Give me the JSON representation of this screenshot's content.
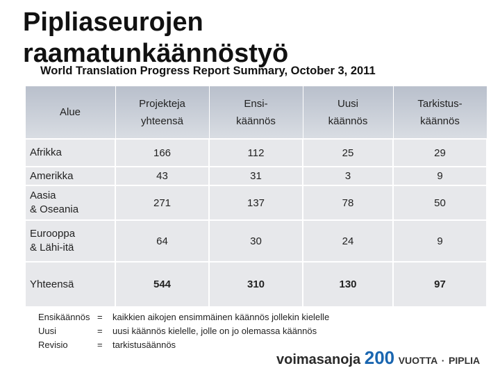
{
  "header": {
    "title_lines": [
      "Pipliaseurojen",
      "raamatunkäännöstyö"
    ],
    "subtitle": "World Translation Progress Report Summary, October 3, 2011"
  },
  "table": {
    "header": [
      [
        "Alue"
      ],
      [
        "Projekteja",
        "yhteensä"
      ],
      [
        "Ensi-",
        "käännös"
      ],
      [
        "Uusi",
        "käännös"
      ],
      [
        "Tarkistus-",
        "käännös"
      ]
    ],
    "rows": [
      [
        [
          "Afrikka"
        ],
        166,
        112,
        25,
        29
      ],
      [
        [
          "Amerikka"
        ],
        43,
        31,
        3,
        9
      ],
      [
        [
          "Aasia",
          "& Oseania"
        ],
        271,
        137,
        78,
        50
      ],
      [
        [
          "Eurooppa",
          "& Lähi-itä"
        ],
        64,
        30,
        24,
        9
      ],
      [
        [
          "Yhteensä"
        ],
        544,
        310,
        130,
        97
      ]
    ]
  },
  "legend": [
    [
      "Ensikäännös",
      "=",
      "kaikkien aikojen ensimmäinen käännös jollekin kielelle"
    ],
    [
      "Uusi",
      "=",
      "uusi käännös kielelle, jolle on jo olemassa käännös"
    ],
    [
      "Revisio",
      "=",
      "tarkistusäännös"
    ]
  ],
  "logo": {
    "word": "voimasanoja",
    "number": "200",
    "years": "VUOTTA",
    "dot": "·",
    "name": "PIPLIA"
  }
}
